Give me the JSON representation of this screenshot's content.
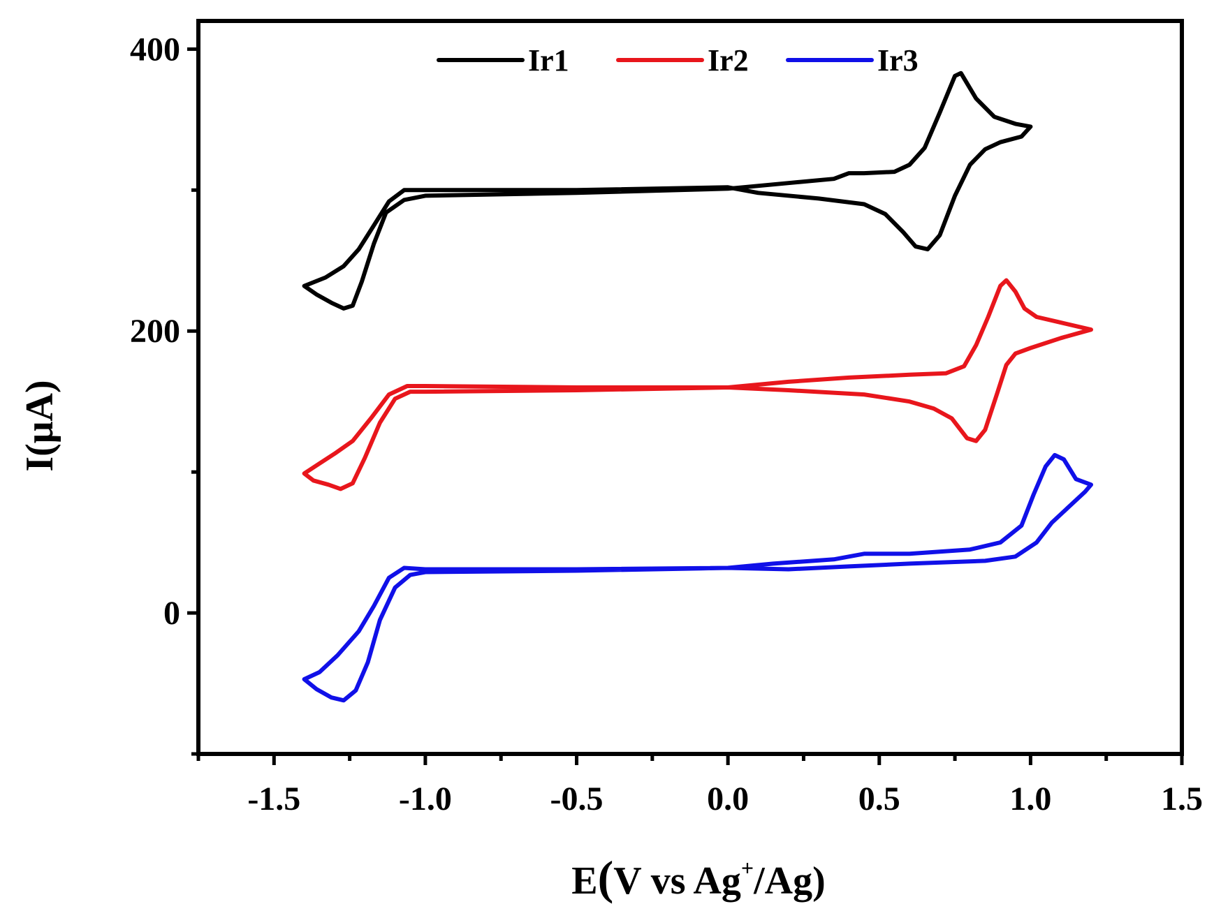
{
  "chart_data": {
    "type": "line",
    "xlabel_main": "E",
    "xlabel_open": "(",
    "xlabel_body": "V vs Ag",
    "xlabel_sup": "+",
    "xlabel_tail": "/Ag)",
    "ylabel": "I(μA)",
    "xlim": [
      -1.75,
      1.5
    ],
    "ylim": [
      -100,
      420
    ],
    "x_ticks": [
      -1.5,
      -1.0,
      -0.5,
      0.0,
      0.5,
      1.0,
      1.5
    ],
    "x_tick_labels": [
      "-1.5",
      "-1.0",
      "-0.5",
      "0.0",
      "0.5",
      "1.0",
      "1.5"
    ],
    "y_ticks": [
      0,
      200,
      400
    ],
    "y_tick_labels": [
      "0",
      "200",
      "400"
    ],
    "y_minor_ticks": [
      -100,
      100,
      300
    ],
    "legend_position": "top-center",
    "series": [
      {
        "name": "Ir1",
        "color": "#000000",
        "points": [
          [
            0.0,
            302
          ],
          [
            -0.5,
            300
          ],
          [
            -1.0,
            300
          ],
          [
            -1.07,
            300
          ],
          [
            -1.12,
            292
          ],
          [
            -1.17,
            275
          ],
          [
            -1.22,
            258
          ],
          [
            -1.27,
            246
          ],
          [
            -1.33,
            238
          ],
          [
            -1.4,
            232
          ],
          [
            -1.36,
            226
          ],
          [
            -1.31,
            220
          ],
          [
            -1.27,
            216
          ],
          [
            -1.24,
            218
          ],
          [
            -1.21,
            235
          ],
          [
            -1.17,
            262
          ],
          [
            -1.13,
            284
          ],
          [
            -1.07,
            293
          ],
          [
            -1.0,
            296
          ],
          [
            -0.5,
            298
          ],
          [
            0.0,
            301
          ],
          [
            0.2,
            305
          ],
          [
            0.35,
            308
          ],
          [
            0.4,
            312
          ],
          [
            0.45,
            312
          ],
          [
            0.55,
            313
          ],
          [
            0.6,
            318
          ],
          [
            0.65,
            330
          ],
          [
            0.7,
            355
          ],
          [
            0.75,
            381
          ],
          [
            0.77,
            383
          ],
          [
            0.82,
            365
          ],
          [
            0.88,
            352
          ],
          [
            0.95,
            347
          ],
          [
            1.0,
            345
          ],
          [
            0.97,
            338
          ],
          [
            0.9,
            334
          ],
          [
            0.85,
            329
          ],
          [
            0.8,
            318
          ],
          [
            0.75,
            296
          ],
          [
            0.7,
            268
          ],
          [
            0.66,
            258
          ],
          [
            0.62,
            260
          ],
          [
            0.58,
            270
          ],
          [
            0.52,
            283
          ],
          [
            0.45,
            290
          ],
          [
            0.3,
            294
          ],
          [
            0.1,
            298
          ],
          [
            0.0,
            302
          ]
        ]
      },
      {
        "name": "Ir2",
        "color": "#e8161c",
        "points": [
          [
            0.0,
            160
          ],
          [
            -0.5,
            160
          ],
          [
            -1.0,
            161
          ],
          [
            -1.06,
            161
          ],
          [
            -1.12,
            155
          ],
          [
            -1.18,
            138
          ],
          [
            -1.24,
            122
          ],
          [
            -1.3,
            113
          ],
          [
            -1.35,
            106
          ],
          [
            -1.4,
            99
          ],
          [
            -1.37,
            94
          ],
          [
            -1.32,
            91
          ],
          [
            -1.28,
            88
          ],
          [
            -1.24,
            92
          ],
          [
            -1.2,
            110
          ],
          [
            -1.15,
            135
          ],
          [
            -1.1,
            152
          ],
          [
            -1.05,
            157
          ],
          [
            -1.0,
            157
          ],
          [
            -0.5,
            158
          ],
          [
            0.0,
            160
          ],
          [
            0.2,
            164
          ],
          [
            0.4,
            167
          ],
          [
            0.6,
            169
          ],
          [
            0.72,
            170
          ],
          [
            0.78,
            175
          ],
          [
            0.82,
            190
          ],
          [
            0.86,
            210
          ],
          [
            0.9,
            232
          ],
          [
            0.92,
            236
          ],
          [
            0.95,
            228
          ],
          [
            0.98,
            216
          ],
          [
            1.02,
            210
          ],
          [
            1.1,
            206
          ],
          [
            1.2,
            201
          ],
          [
            1.1,
            195
          ],
          [
            1.0,
            188
          ],
          [
            0.95,
            184
          ],
          [
            0.92,
            176
          ],
          [
            0.89,
            156
          ],
          [
            0.85,
            130
          ],
          [
            0.82,
            122
          ],
          [
            0.79,
            124
          ],
          [
            0.74,
            138
          ],
          [
            0.68,
            145
          ],
          [
            0.6,
            150
          ],
          [
            0.45,
            155
          ],
          [
            0.2,
            158
          ],
          [
            0.0,
            160
          ]
        ]
      },
      {
        "name": "Ir3",
        "color": "#1010e8",
        "points": [
          [
            0.0,
            32
          ],
          [
            -0.5,
            31
          ],
          [
            -1.0,
            31
          ],
          [
            -1.07,
            32
          ],
          [
            -1.12,
            25
          ],
          [
            -1.17,
            5
          ],
          [
            -1.22,
            -13
          ],
          [
            -1.29,
            -30
          ],
          [
            -1.35,
            -42
          ],
          [
            -1.4,
            -47
          ],
          [
            -1.36,
            -54
          ],
          [
            -1.31,
            -60
          ],
          [
            -1.27,
            -62
          ],
          [
            -1.23,
            -55
          ],
          [
            -1.19,
            -35
          ],
          [
            -1.15,
            -5
          ],
          [
            -1.1,
            18
          ],
          [
            -1.05,
            27
          ],
          [
            -1.0,
            29
          ],
          [
            -0.5,
            30
          ],
          [
            0.0,
            32
          ],
          [
            0.15,
            35
          ],
          [
            0.35,
            38
          ],
          [
            0.4,
            40
          ],
          [
            0.45,
            42
          ],
          [
            0.6,
            42
          ],
          [
            0.8,
            45
          ],
          [
            0.9,
            50
          ],
          [
            0.97,
            62
          ],
          [
            1.01,
            84
          ],
          [
            1.05,
            104
          ],
          [
            1.08,
            112
          ],
          [
            1.11,
            109
          ],
          [
            1.15,
            95
          ],
          [
            1.2,
            91
          ],
          [
            1.18,
            86
          ],
          [
            1.13,
            76
          ],
          [
            1.07,
            64
          ],
          [
            1.02,
            50
          ],
          [
            0.95,
            40
          ],
          [
            0.85,
            37
          ],
          [
            0.6,
            35
          ],
          [
            0.4,
            33
          ],
          [
            0.2,
            31
          ],
          [
            0.0,
            32
          ]
        ]
      }
    ]
  }
}
